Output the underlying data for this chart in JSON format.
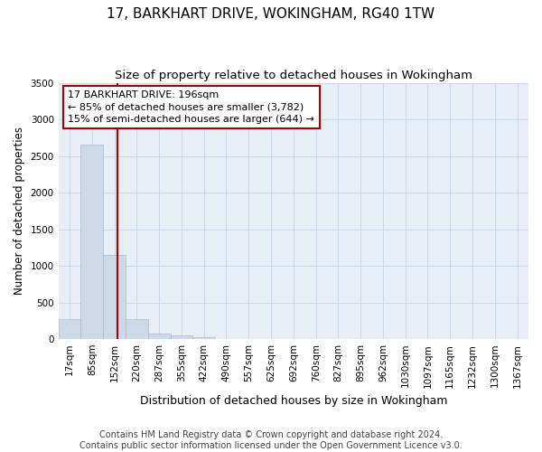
{
  "title": "17, BARKHART DRIVE, WOKINGHAM, RG40 1TW",
  "subtitle": "Size of property relative to detached houses in Wokingham",
  "xlabel": "Distribution of detached houses by size in Wokingham",
  "ylabel": "Number of detached properties",
  "footer_line1": "Contains HM Land Registry data © Crown copyright and database right 2024.",
  "footer_line2": "Contains public sector information licensed under the Open Government Licence v3.0.",
  "bin_labels": [
    "17sqm",
    "85sqm",
    "152sqm",
    "220sqm",
    "287sqm",
    "355sqm",
    "422sqm",
    "490sqm",
    "557sqm",
    "625sqm",
    "692sqm",
    "760sqm",
    "827sqm",
    "895sqm",
    "962sqm",
    "1030sqm",
    "1097sqm",
    "1165sqm",
    "1232sqm",
    "1300sqm",
    "1367sqm"
  ],
  "bar_heights": [
    270,
    2650,
    1150,
    270,
    80,
    45,
    20,
    0,
    0,
    0,
    0,
    0,
    0,
    0,
    0,
    0,
    0,
    0,
    0,
    0,
    0
  ],
  "bar_color": "#ccd9e8",
  "bar_edgecolor": "#a8bdd0",
  "grid_color": "#cdd8e8",
  "bg_color": "#e8eef5",
  "vline_color": "#aa0000",
  "annotation_text": "17 BARKHART DRIVE: 196sqm\n← 85% of detached houses are smaller (3,782)\n15% of semi-detached houses are larger (644) →",
  "annotation_box_color": "#ffffff",
  "annotation_box_edgecolor": "#aa0000",
  "ylim": [
    0,
    3500
  ],
  "yticks": [
    0,
    500,
    1000,
    1500,
    2000,
    2500,
    3000,
    3500
  ],
  "title_fontsize": 11,
  "subtitle_fontsize": 9.5,
  "annotation_fontsize": 8,
  "xlabel_fontsize": 9,
  "ylabel_fontsize": 8.5,
  "tick_fontsize": 7.5,
  "footer_fontsize": 7
}
